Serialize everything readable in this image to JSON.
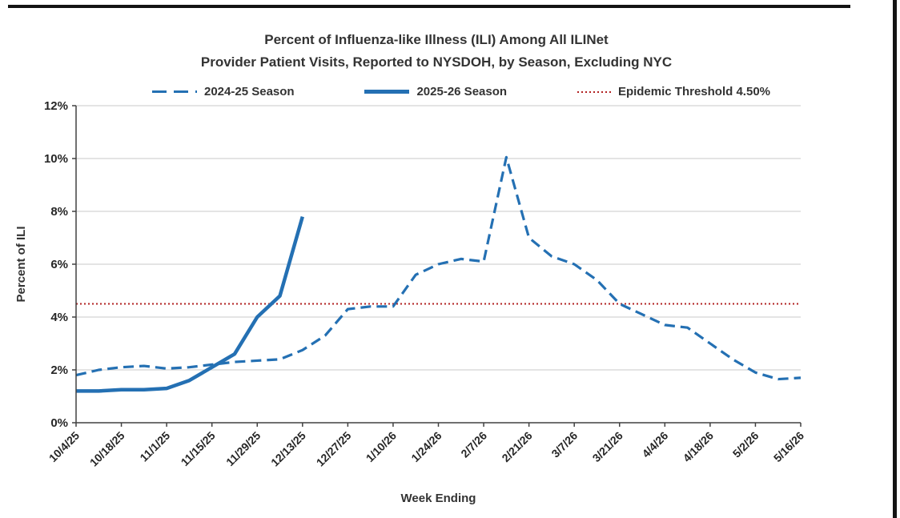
{
  "chart": {
    "title_line1": "Percent of Influenza-like Illness (ILI) Among All ILINet",
    "title_line2": "Provider Patient Visits, Reported to NYSDOH, by Season, Excluding NYC",
    "x_axis_label": "Week Ending",
    "y_axis_label": "Percent of ILI",
    "legend": [
      {
        "label": "2024-25 Season",
        "style": "dashed",
        "color": "#2470B3"
      },
      {
        "label": "2025-26 Season",
        "style": "solid",
        "color": "#2470B3"
      },
      {
        "label": "Epidemic Threshold 4.50%",
        "style": "dotted",
        "color": "#B22222"
      }
    ],
    "colors": {
      "series_blue": "#2470B3",
      "threshold_red": "#B22222",
      "gridline": "#c9c9c9",
      "axis": "#404040",
      "text": "#333333"
    }
  },
  "chart_data": {
    "type": "line",
    "title": "Percent of Influenza-like Illness (ILI) Among All ILINet Provider Patient Visits, Reported to NYSDOH, by Season, Excluding NYC",
    "xlabel": "Week Ending",
    "ylabel": "Percent of ILI",
    "ylim": [
      0,
      12
    ],
    "y_ticks": [
      "0%",
      "2%",
      "4%",
      "6%",
      "8%",
      "10%",
      "12%"
    ],
    "grid": "horizontal",
    "legend_position": "top",
    "x_tick_every": 2,
    "x": [
      "10/4/25",
      "10/11/25",
      "10/18/25",
      "10/25/25",
      "11/1/25",
      "11/8/25",
      "11/15/25",
      "11/22/25",
      "11/29/25",
      "12/6/25",
      "12/13/25",
      "12/20/25",
      "12/27/25",
      "1/3/26",
      "1/10/26",
      "1/17/26",
      "1/24/26",
      "1/31/26",
      "2/7/26",
      "2/14/26",
      "2/21/26",
      "2/28/26",
      "3/7/26",
      "3/14/26",
      "3/21/26",
      "3/28/26",
      "4/4/26",
      "4/11/26",
      "4/18/26",
      "4/25/26",
      "5/2/26",
      "5/9/26",
      "5/16/26"
    ],
    "series": [
      {
        "name": "2024-25 Season",
        "style": "dashed",
        "color": "#2470B3",
        "values": [
          1.8,
          2.0,
          2.1,
          2.15,
          2.05,
          2.1,
          2.2,
          2.3,
          2.35,
          2.4,
          2.75,
          3.3,
          4.3,
          4.4,
          4.4,
          5.6,
          6.0,
          6.2,
          6.1,
          10.05,
          7.0,
          6.3,
          6.0,
          5.4,
          4.5,
          4.1,
          3.7,
          3.6,
          3.0,
          2.4,
          1.9,
          1.65,
          1.7
        ]
      },
      {
        "name": "2025-26 Season",
        "style": "solid",
        "color": "#2470B3",
        "values": [
          1.2,
          1.2,
          1.25,
          1.25,
          1.3,
          1.6,
          2.1,
          2.6,
          4.0,
          4.8,
          7.8
        ]
      }
    ],
    "threshold": {
      "name": "Epidemic Threshold 4.50%",
      "value": 4.5,
      "style": "dotted",
      "color": "#B22222"
    }
  }
}
